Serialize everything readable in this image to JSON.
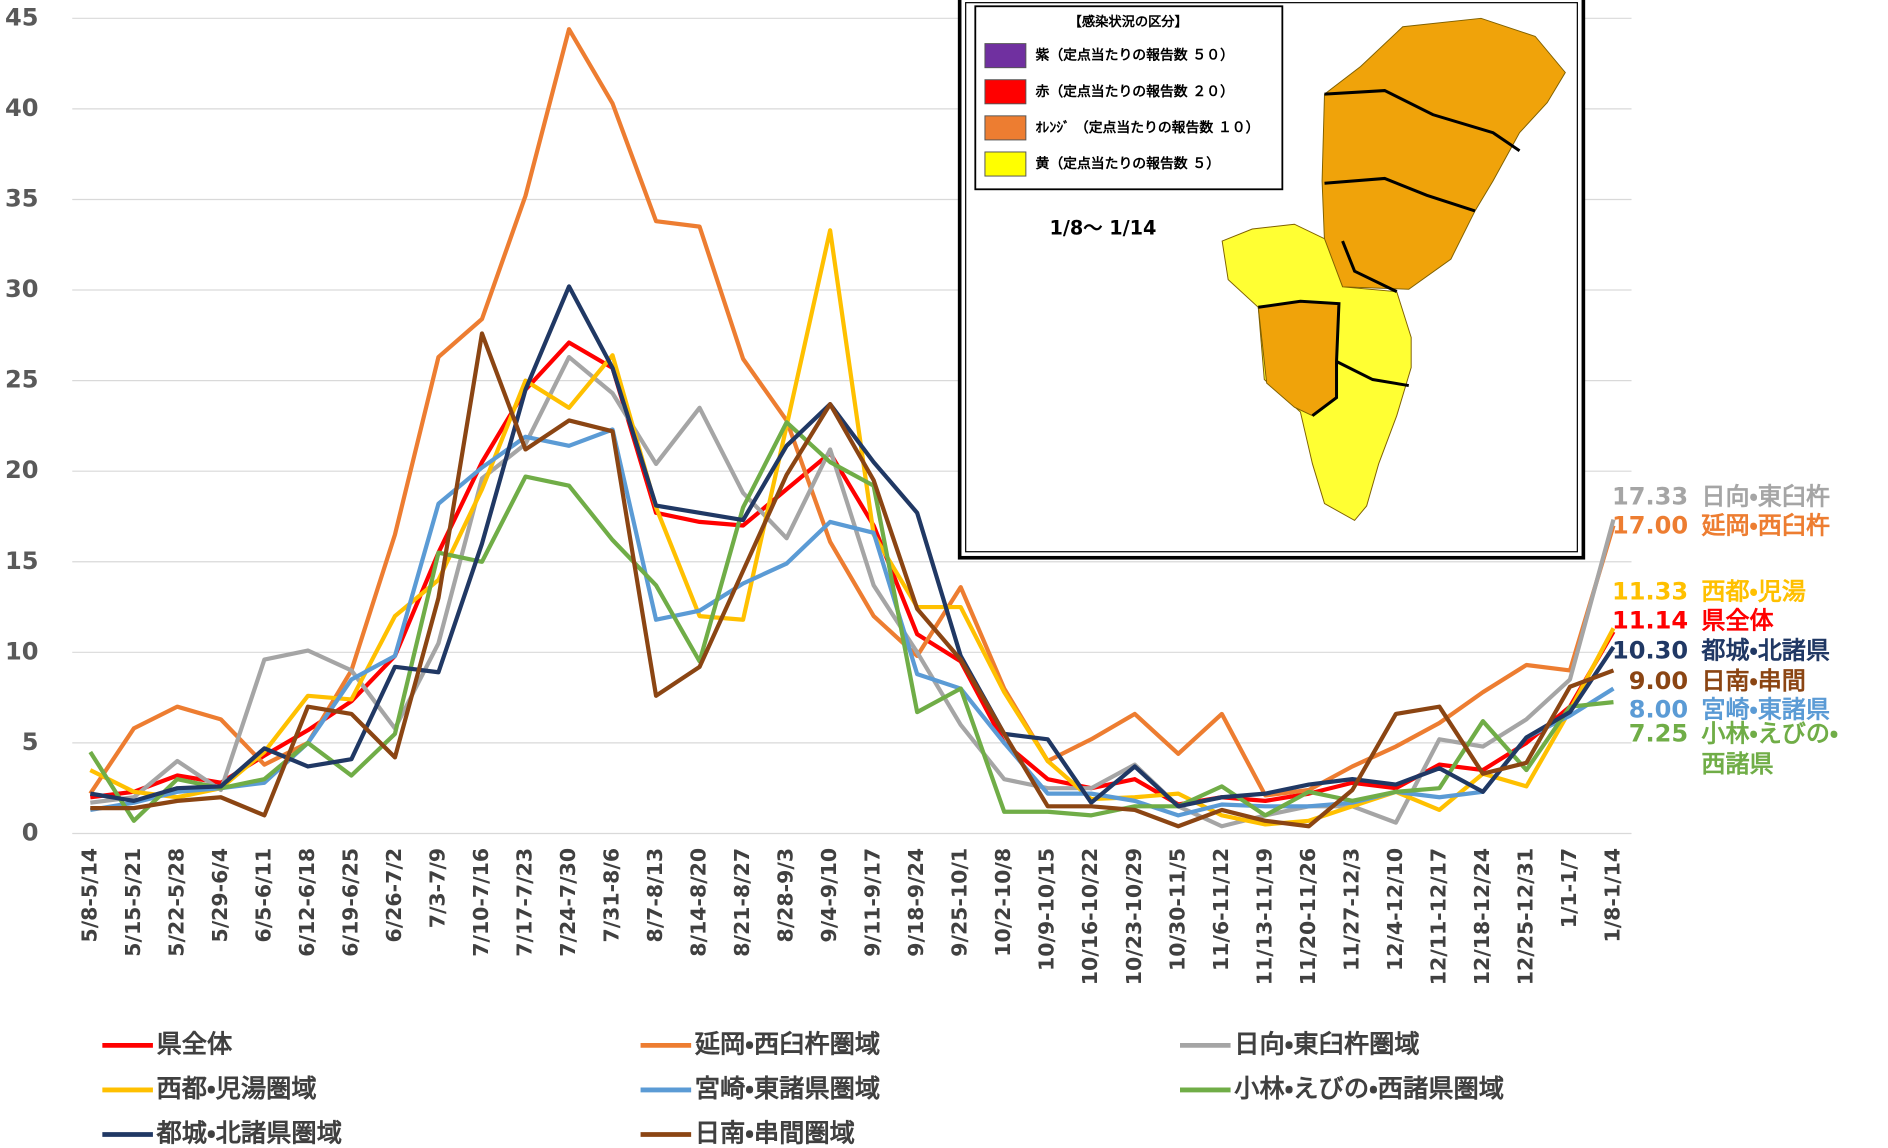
{
  "chart_data": {
    "type": "line",
    "categories": [
      "5/8-5/14",
      "5/15-5/21",
      "5/22-5/28",
      "5/29-6/4",
      "6/5-6/11",
      "6/12-6/18",
      "6/19-6/25",
      "6/26-7/2",
      "7/3-7/9",
      "7/10-7/16",
      "7/17-7/23",
      "7/24-7/30",
      "7/31-8/6",
      "8/7-8/13",
      "8/14-8/20",
      "8/21-8/27",
      "8/28-9/3",
      "9/4-9/10",
      "9/11-9/17",
      "9/18-9/24",
      "9/25-10/1",
      "10/2-10/8",
      "10/9-10/15",
      "10/16-10/22",
      "10/23-10/29",
      "10/30-11/5",
      "11/6-11/12",
      "11/13-11/19",
      "11/20-11/26",
      "11/27-12/3",
      "12/4-12/10",
      "12/11-12/17",
      "12/18-12/24",
      "12/25-12/31",
      "1/1-1/7",
      "1/8-1/14"
    ],
    "ylim": [
      0,
      45
    ],
    "yticks": [
      0,
      5,
      10,
      15,
      20,
      25,
      30,
      35,
      40,
      45
    ],
    "grid": true,
    "series": [
      {
        "name": "県全体",
        "end_label": [
          "県全体"
        ],
        "color": "#ff0000",
        "values": [
          2.0,
          2.3,
          3.2,
          2.8,
          4.3,
          5.7,
          7.3,
          9.8,
          15.5,
          20.5,
          24.5,
          27.1,
          25.7,
          17.7,
          17.2,
          17.0,
          19.0,
          21.0,
          17.0,
          11.0,
          9.5,
          5.0,
          3.0,
          2.5,
          3.0,
          1.6,
          2.0,
          1.8,
          2.2,
          2.8,
          2.5,
          3.8,
          3.5,
          5.0,
          7.0,
          11.14
        ]
      },
      {
        "name": "延岡・西臼杵圏域",
        "end_label": [
          "延岡・西臼杵"
        ],
        "color": "#ed7d31",
        "values": [
          2.2,
          5.8,
          7.0,
          6.3,
          3.8,
          5.0,
          9.0,
          16.5,
          26.3,
          28.4,
          35.2,
          44.4,
          40.3,
          33.8,
          33.5,
          26.2,
          22.8,
          16.1,
          12.0,
          9.8,
          13.6,
          8.0,
          4.0,
          5.2,
          6.6,
          4.4,
          6.6,
          2.1,
          2.4,
          3.7,
          4.8,
          6.1,
          7.8,
          9.3,
          9.0,
          17
        ],
        "value_labels": [
          null,
          null,
          null,
          null,
          null,
          null,
          null,
          null,
          null,
          null,
          null,
          null,
          null,
          null,
          null,
          null,
          null,
          null,
          null,
          null,
          null,
          null,
          null,
          null,
          null,
          null,
          null,
          null,
          null,
          null,
          null,
          null,
          null,
          null,
          null,
          "17.00"
        ]
      },
      {
        "name": "日向・東臼杵圏域",
        "end_label": [
          "日向・東臼杵"
        ],
        "color": "#a5a5a5",
        "values": [
          1.7,
          2.0,
          4.0,
          2.4,
          9.6,
          10.1,
          9.0,
          5.8,
          10.5,
          19.6,
          21.5,
          26.3,
          24.3,
          20.4,
          23.5,
          18.8,
          16.3,
          21.2,
          13.7,
          10.0,
          6.0,
          3.0,
          2.5,
          2.5,
          3.8,
          1.5,
          0.4,
          1.0,
          1.5,
          1.5,
          0.6,
          5.2,
          4.8,
          6.3,
          8.5,
          17.33
        ]
      },
      {
        "name": "西都・児湯圏域",
        "end_label": [
          "西都・児湯"
        ],
        "color": "#ffc000",
        "values": [
          3.5,
          2.3,
          2.0,
          2.5,
          4.5,
          7.6,
          7.4,
          12.0,
          14.0,
          19.0,
          25.0,
          23.5,
          26.4,
          18.0,
          12.0,
          11.8,
          22.5,
          33.3,
          16.5,
          12.5,
          12.5,
          7.8,
          4.0,
          1.9,
          2.0,
          2.2,
          1.0,
          0.5,
          0.7,
          1.5,
          2.3,
          1.3,
          3.3,
          2.6,
          6.8,
          11.33
        ]
      },
      {
        "name": "宮崎・東諸県圏域",
        "end_label": [
          "宮崎・東諸県"
        ],
        "color": "#5b9bd5",
        "values": [
          1.3,
          1.7,
          2.3,
          2.5,
          2.8,
          5.0,
          8.5,
          9.8,
          18.2,
          20.2,
          21.9,
          21.4,
          22.3,
          11.8,
          12.3,
          13.8,
          14.9,
          17.2,
          16.6,
          8.8,
          8.0,
          5.0,
          2.2,
          2.2,
          1.8,
          1.0,
          1.6,
          1.5,
          1.5,
          1.7,
          2.3,
          2.0,
          2.3,
          5.3,
          6.5,
          8
        ],
        "value_labels": [
          null,
          null,
          null,
          null,
          null,
          null,
          null,
          null,
          null,
          null,
          null,
          null,
          null,
          null,
          null,
          null,
          null,
          null,
          null,
          null,
          null,
          null,
          null,
          null,
          null,
          null,
          null,
          null,
          null,
          null,
          null,
          null,
          null,
          null,
          null,
          "8.00"
        ]
      },
      {
        "name": "小林・えびの・西諸県圏域",
        "end_label": [
          "小林・えびの・",
          "西諸県"
        ],
        "color": "#70ad47",
        "values": [
          4.5,
          0.7,
          3.0,
          2.5,
          3.0,
          5.0,
          3.2,
          5.5,
          15.5,
          15.0,
          19.7,
          19.2,
          16.2,
          13.7,
          9.5,
          18.0,
          22.7,
          20.5,
          19.2,
          6.7,
          8.0,
          1.2,
          1.2,
          1.0,
          1.5,
          1.5,
          2.6,
          1.0,
          2.3,
          1.8,
          2.3,
          2.5,
          6.2,
          3.5,
          7.0,
          7.25
        ]
      },
      {
        "name": "都城・北諸県圏域",
        "end_label": [
          "都城・北諸県"
        ],
        "color": "#203864",
        "values": [
          2.2,
          1.8,
          2.5,
          2.6,
          4.7,
          3.7,
          4.1,
          9.2,
          8.9,
          16.0,
          24.5,
          30.2,
          25.7,
          18.1,
          17.7,
          17.3,
          21.4,
          23.7,
          20.5,
          17.7,
          9.8,
          5.5,
          5.2,
          1.7,
          3.7,
          1.5,
          2.0,
          2.2,
          2.7,
          3.0,
          2.7,
          3.6,
          2.3,
          5.3,
          6.7,
          10.3
        ],
        "value_labels": [
          null,
          null,
          null,
          null,
          null,
          null,
          null,
          null,
          null,
          null,
          null,
          null,
          null,
          null,
          null,
          null,
          null,
          null,
          null,
          null,
          null,
          null,
          null,
          null,
          null,
          null,
          null,
          null,
          null,
          null,
          null,
          null,
          null,
          null,
          null,
          "10.30"
        ]
      },
      {
        "name": "日南・串間圏域",
        "end_label": [
          "日南・串間"
        ],
        "color": "#8b4513",
        "values": [
          1.4,
          1.4,
          1.8,
          2.0,
          1.0,
          7.0,
          6.6,
          4.2,
          13.0,
          27.6,
          21.2,
          22.8,
          22.2,
          7.6,
          9.2,
          14.5,
          19.8,
          23.7,
          19.5,
          12.4,
          9.6,
          5.5,
          1.5,
          1.5,
          1.3,
          0.4,
          1.3,
          0.7,
          0.4,
          2.4,
          6.6,
          7.0,
          3.3,
          3.9,
          8.1,
          9
        ],
        "value_labels": [
          null,
          null,
          null,
          null,
          null,
          null,
          null,
          null,
          null,
          null,
          null,
          null,
          null,
          null,
          null,
          null,
          null,
          null,
          null,
          null,
          null,
          null,
          null,
          null,
          null,
          null,
          null,
          null,
          null,
          null,
          null,
          null,
          null,
          null,
          null,
          "9.00"
        ]
      }
    ],
    "inset": {
      "title": "【感染状況の区分】",
      "legend": [
        {
          "label": "紫（定点当たりの報告数 ５０）",
          "color": "#7030a0"
        },
        {
          "label": "赤（定点当たりの報告数 ２０）",
          "color": "#ff0000"
        },
        {
          "label": "ｵﾚﾝｼﾞ （定点当たりの報告数 １０）",
          "color": "#ed7d31"
        },
        {
          "label": "黄（定点当たりの報告数 ５）",
          "color": "#ffff00"
        }
      ],
      "period": "1/8〜 1/14"
    }
  }
}
